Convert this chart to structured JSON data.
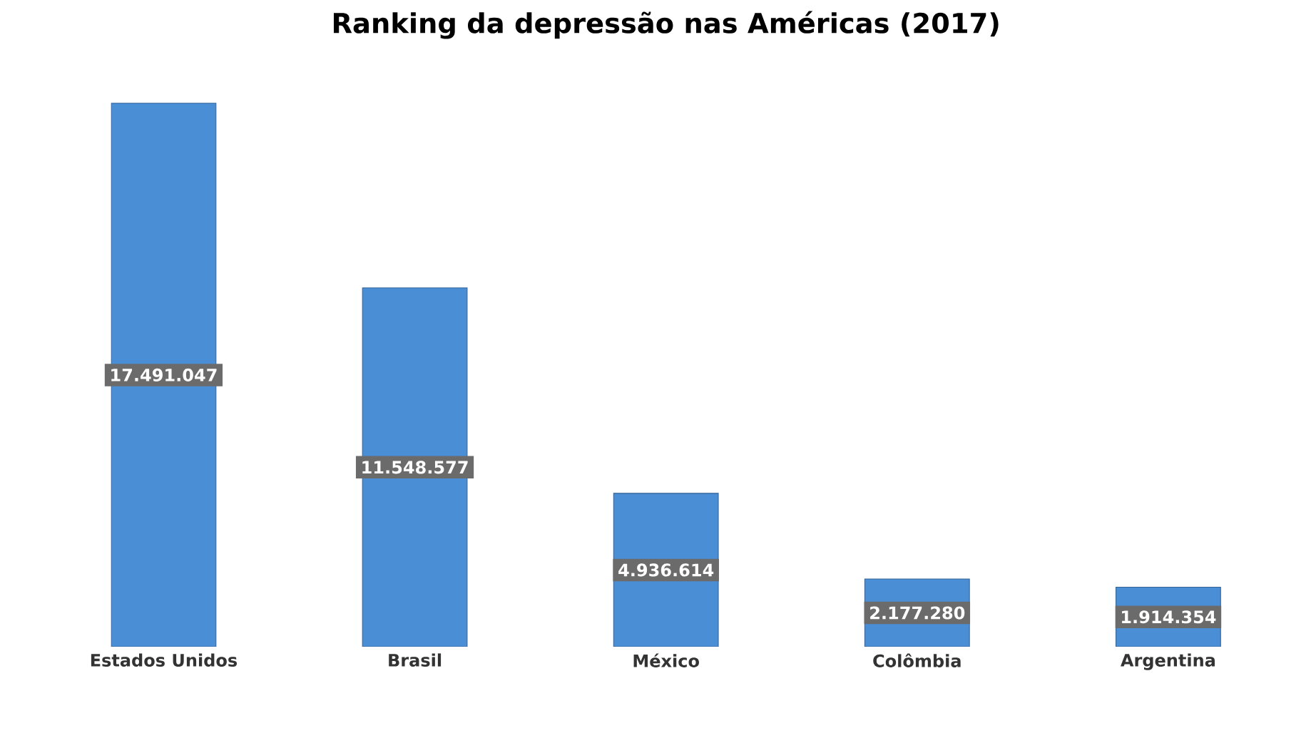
{
  "chart_data": {
    "type": "bar",
    "title": "Ranking da depressão nas Américas (2017)",
    "categories": [
      "Estados Unidos",
      "Brasil",
      "México",
      "Colômbia",
      "Argentina"
    ],
    "values": [
      17491047,
      11548577,
      4936614,
      2177280,
      1914354
    ],
    "value_labels": [
      "17.491.047",
      "11.548.577",
      "4.936.614",
      "2.177.280",
      "1.914.354"
    ],
    "color": "#4a8ed6"
  }
}
